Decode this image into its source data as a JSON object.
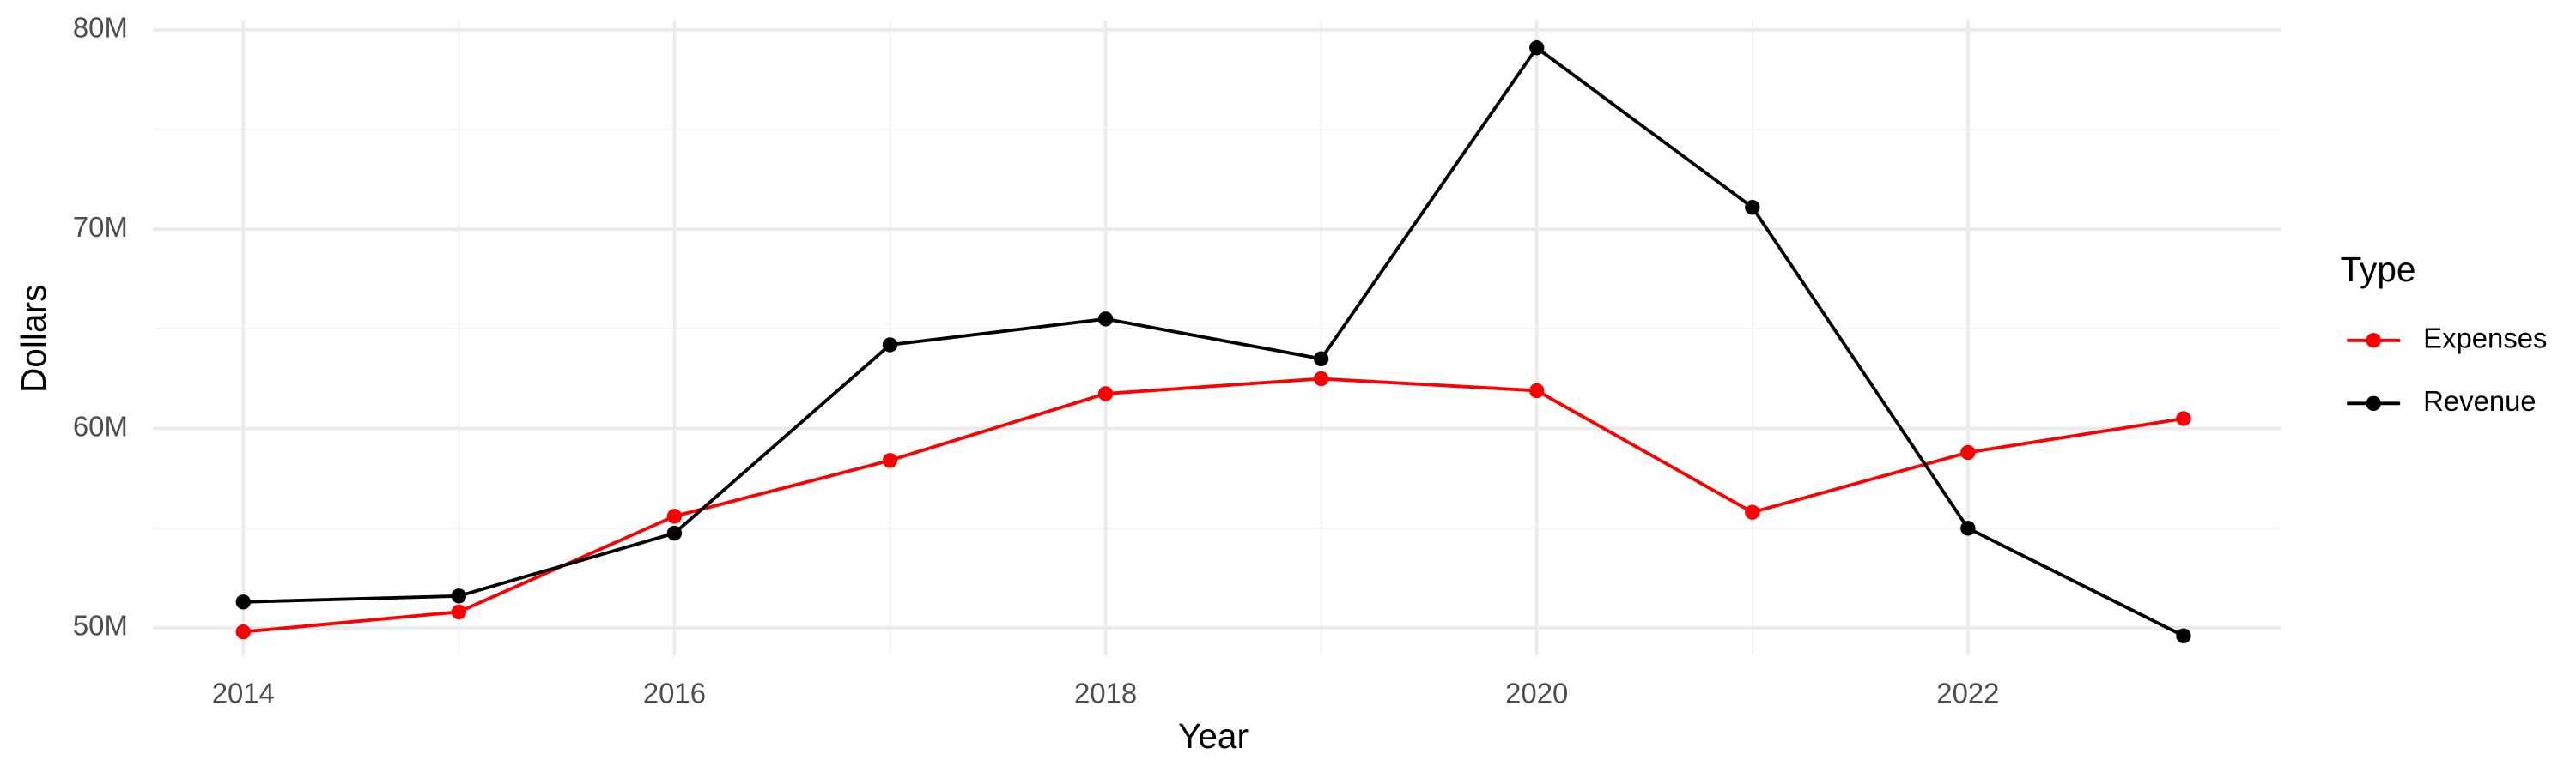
{
  "chart_data": {
    "type": "line",
    "x_label": "Year",
    "y_label": "Dollars",
    "legend_title": "Type",
    "legend_position": "right",
    "grid": true,
    "x": [
      2014,
      2015,
      2016,
      2017,
      2018,
      2019,
      2020,
      2021,
      2022,
      2023
    ],
    "series": [
      {
        "name": "Expenses",
        "color": "#ff0000",
        "values": [
          49800000,
          50800000,
          55600000,
          58400000,
          61750000,
          62500000,
          61900000,
          55800000,
          58800000,
          60500000
        ]
      },
      {
        "name": "Revenue",
        "color": "#000000",
        "values": [
          51300000,
          51600000,
          54750000,
          64200000,
          65500000,
          63500000,
          79100000,
          71100000,
          55000000,
          49600000
        ]
      }
    ],
    "xlim": [
      2013.58,
      2023.45
    ],
    "xticks": [
      2014,
      2016,
      2018,
      2020,
      2022
    ],
    "ylim": [
      48600000,
      80500000
    ],
    "yticks": [
      {
        "value": 50000000,
        "label": "50M"
      },
      {
        "value": 60000000,
        "label": "60M"
      },
      {
        "value": 70000000,
        "label": "70M"
      },
      {
        "value": 80000000,
        "label": "80M"
      }
    ]
  }
}
